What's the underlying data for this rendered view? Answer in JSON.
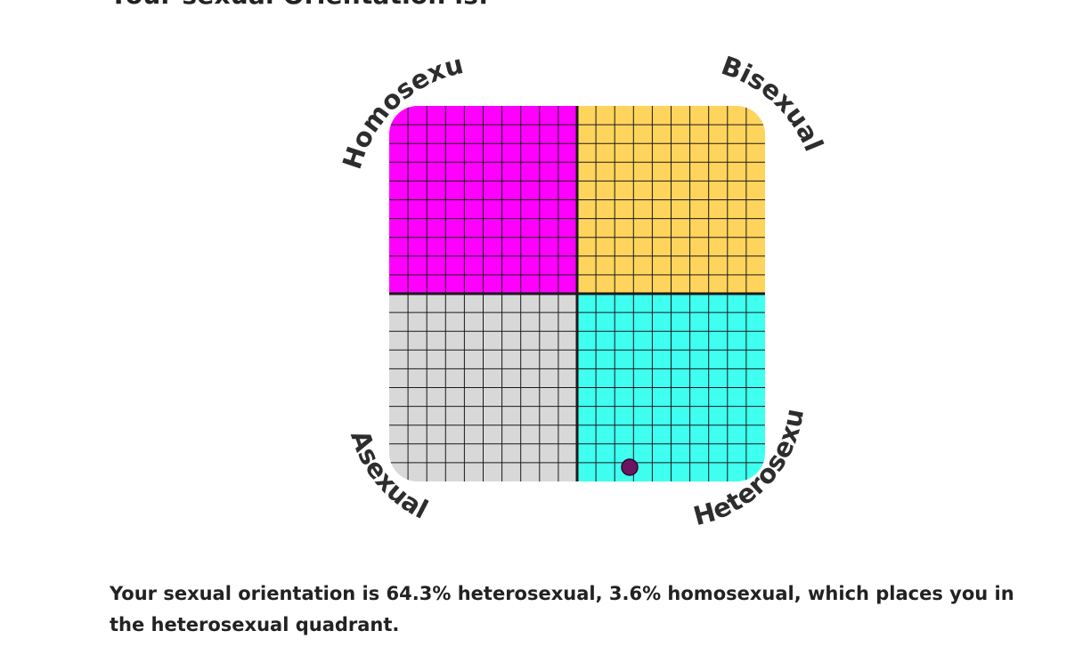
{
  "heading": "Your sexual Orientation is:",
  "compass": {
    "labels": {
      "top_left": "Homosexual",
      "top_right": "Bisexual",
      "bottom_left": "Asexual",
      "bottom_right": "Heterosexual"
    },
    "colors": {
      "top_left": "#ff00ff",
      "top_right": "#ffd45d",
      "bottom_left": "#d8d8d8",
      "bottom_right": "#3ffff0",
      "marker": "#6b1562",
      "grid": "#1a1a1a"
    },
    "grid_cells_per_side": 20,
    "marker": {
      "heterosexual_percent": 64.3,
      "homosexual_percent": 3.6
    }
  },
  "result": {
    "text": "Your sexual orientation is 64.3% heterosexual, 3.6% homosexual, which places you in the heterosexual quadrant."
  }
}
